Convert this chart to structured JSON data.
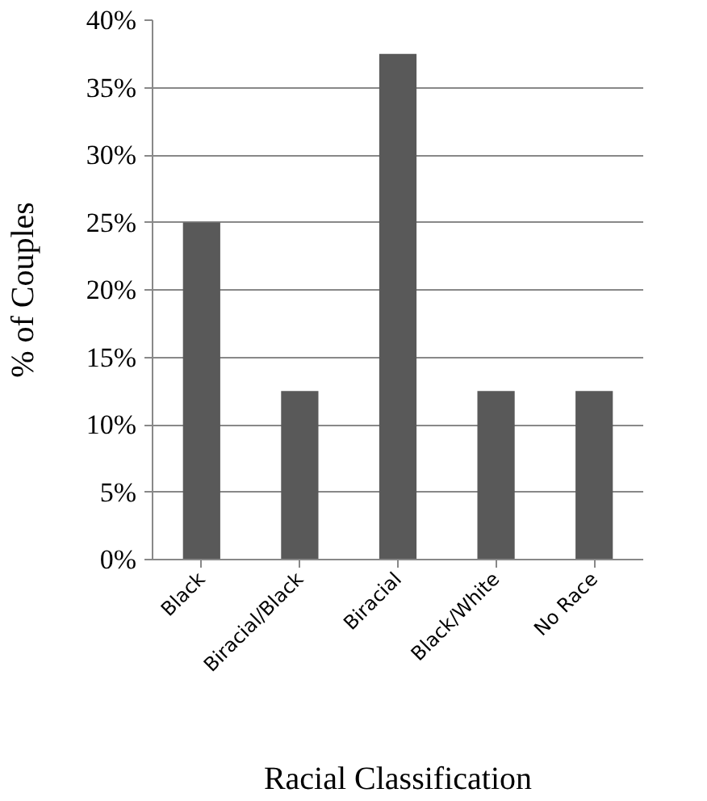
{
  "chart_data": {
    "type": "bar",
    "categories": [
      "Black",
      "Biracial/Black",
      "Biracial",
      "Black/White",
      "No Race"
    ],
    "values": [
      25,
      12.5,
      37.5,
      12.5,
      12.5
    ],
    "color": "#595959",
    "xlabel": "Racial Classification",
    "ylabel": "% of Couples",
    "ylim": [
      0,
      40
    ],
    "yticks": [
      {
        "value": 0,
        "label": "0%"
      },
      {
        "value": 5,
        "label": "5%"
      },
      {
        "value": 10,
        "label": "10%"
      },
      {
        "value": 15,
        "label": "15%"
      },
      {
        "value": 20,
        "label": "20%"
      },
      {
        "value": 25,
        "label": "25%"
      },
      {
        "value": 30,
        "label": "30%"
      },
      {
        "value": 35,
        "label": "35%"
      },
      {
        "value": 40,
        "label": "40%"
      }
    ],
    "grid": "y"
  }
}
